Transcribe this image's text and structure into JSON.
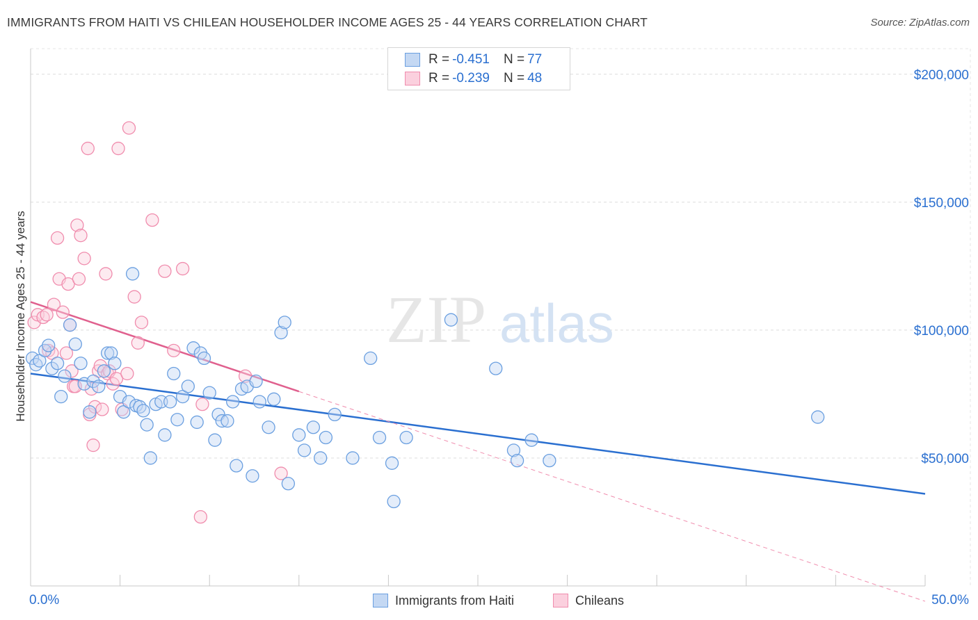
{
  "title": "IMMIGRANTS FROM HAITI VS CHILEAN HOUSEHOLDER INCOME AGES 25 - 44 YEARS CORRELATION CHART",
  "source": "Source: ZipAtlas.com",
  "watermark": {
    "zip": "ZIP",
    "atlas": "atlas"
  },
  "legend": {
    "haiti": {
      "r_label": "R =",
      "r_value": "-0.451",
      "n_label": "N =",
      "n_value": "77"
    },
    "chileans": {
      "r_label": "R =",
      "r_value": "-0.239",
      "n_label": "N =",
      "n_value": "48"
    }
  },
  "colors": {
    "haiti": "#6a9fe0",
    "haiti_line": "#2a6fd0",
    "chileans": "#f08cad",
    "chileans_line": "#e0608e",
    "axis_text": "#2a6fd0",
    "grid": "#d8d8d8"
  },
  "chart_data": {
    "type": "scatter",
    "title": "IMMIGRANTS FROM HAITI VS CHILEAN HOUSEHOLDER INCOME AGES 25 - 44 YEARS CORRELATION CHART",
    "xlabel": "",
    "ylabel": "Householder Income Ages 25 - 44 years",
    "xlim": [
      0,
      50
    ],
    "ylim": [
      0,
      210000
    ],
    "x_tick_labels": [
      "0.0%",
      "50.0%"
    ],
    "y_ticks": [
      50000,
      100000,
      150000,
      200000
    ],
    "y_tick_labels": [
      "$50,000",
      "$100,000",
      "$150,000",
      "$200,000"
    ],
    "grid": true,
    "legend_position": "top-center",
    "series": [
      {
        "name": "Immigrants from Haiti",
        "color": "#6a9fe0",
        "trendline": {
          "x": [
            0,
            50
          ],
          "y": [
            83000,
            36000
          ]
        },
        "points": [
          [
            0.1,
            89000
          ],
          [
            0.3,
            86500
          ],
          [
            0.5,
            88000
          ],
          [
            0.8,
            92000
          ],
          [
            1.0,
            94000
          ],
          [
            1.2,
            85000
          ],
          [
            1.5,
            87000
          ],
          [
            1.7,
            74000
          ],
          [
            1.9,
            82000
          ],
          [
            2.2,
            102000
          ],
          [
            2.5,
            94500
          ],
          [
            2.8,
            87000
          ],
          [
            3.0,
            79000
          ],
          [
            3.3,
            68000
          ],
          [
            3.5,
            80000
          ],
          [
            3.8,
            78000
          ],
          [
            4.1,
            84000
          ],
          [
            4.3,
            91000
          ],
          [
            4.5,
            91000
          ],
          [
            4.7,
            87000
          ],
          [
            5.0,
            74000
          ],
          [
            5.2,
            68000
          ],
          [
            5.5,
            72000
          ],
          [
            5.7,
            122000
          ],
          [
            5.9,
            70500
          ],
          [
            6.1,
            70000
          ],
          [
            6.3,
            68500
          ],
          [
            6.5,
            63000
          ],
          [
            6.7,
            50000
          ],
          [
            7.0,
            71000
          ],
          [
            7.3,
            72000
          ],
          [
            7.5,
            59000
          ],
          [
            7.8,
            72000
          ],
          [
            8.0,
            83000
          ],
          [
            8.2,
            65000
          ],
          [
            8.5,
            74000
          ],
          [
            8.8,
            78000
          ],
          [
            9.1,
            93000
          ],
          [
            9.3,
            64000
          ],
          [
            9.5,
            91000
          ],
          [
            9.7,
            89000
          ],
          [
            10.0,
            75500
          ],
          [
            10.3,
            57000
          ],
          [
            10.5,
            67000
          ],
          [
            10.7,
            64500
          ],
          [
            11.0,
            64500
          ],
          [
            11.3,
            72000
          ],
          [
            11.5,
            47000
          ],
          [
            11.8,
            77000
          ],
          [
            12.1,
            78000
          ],
          [
            12.4,
            43000
          ],
          [
            12.6,
            80000
          ],
          [
            12.8,
            72000
          ],
          [
            13.3,
            62000
          ],
          [
            13.6,
            73000
          ],
          [
            14.0,
            99000
          ],
          [
            14.2,
            103000
          ],
          [
            14.4,
            40000
          ],
          [
            15.0,
            59000
          ],
          [
            15.3,
            53000
          ],
          [
            15.8,
            62000
          ],
          [
            16.2,
            50000
          ],
          [
            16.5,
            58000
          ],
          [
            17.0,
            67000
          ],
          [
            18.0,
            50000
          ],
          [
            19.0,
            89000
          ],
          [
            19.5,
            58000
          ],
          [
            20.2,
            48000
          ],
          [
            20.3,
            33000
          ],
          [
            21.0,
            58000
          ],
          [
            23.5,
            104000
          ],
          [
            26.0,
            85000
          ],
          [
            27.0,
            53000
          ],
          [
            27.2,
            49000
          ],
          [
            28.0,
            57000
          ],
          [
            29.0,
            49000
          ],
          [
            44.0,
            66000
          ]
        ]
      },
      {
        "name": "Chileans",
        "color": "#f08cad",
        "trendline": {
          "x": [
            0,
            15
          ],
          "y": [
            111000,
            76000
          ],
          "dashed_extension": {
            "x": [
              15,
              50
            ],
            "y": [
              76000,
              -6000
            ]
          }
        },
        "points": [
          [
            0.2,
            103000
          ],
          [
            0.4,
            106000
          ],
          [
            0.7,
            105000
          ],
          [
            0.9,
            106000
          ],
          [
            1.0,
            92000
          ],
          [
            1.2,
            91000
          ],
          [
            1.3,
            110000
          ],
          [
            1.5,
            136000
          ],
          [
            1.6,
            120000
          ],
          [
            1.8,
            107000
          ],
          [
            2.0,
            91000
          ],
          [
            2.1,
            118000
          ],
          [
            2.2,
            102000
          ],
          [
            2.3,
            84000
          ],
          [
            2.4,
            78000
          ],
          [
            2.5,
            78000
          ],
          [
            2.6,
            141000
          ],
          [
            2.7,
            120000
          ],
          [
            2.8,
            137000
          ],
          [
            3.0,
            128000
          ],
          [
            3.2,
            171000
          ],
          [
            3.3,
            67000
          ],
          [
            3.4,
            77000
          ],
          [
            3.5,
            55000
          ],
          [
            3.6,
            70000
          ],
          [
            3.8,
            84000
          ],
          [
            3.9,
            86000
          ],
          [
            4.0,
            69000
          ],
          [
            4.2,
            122000
          ],
          [
            4.3,
            83000
          ],
          [
            4.4,
            84000
          ],
          [
            4.6,
            79000
          ],
          [
            4.8,
            81000
          ],
          [
            4.9,
            171000
          ],
          [
            5.1,
            69000
          ],
          [
            5.4,
            83000
          ],
          [
            5.5,
            179000
          ],
          [
            5.8,
            113000
          ],
          [
            6.0,
            95000
          ],
          [
            6.2,
            103000
          ],
          [
            6.8,
            143000
          ],
          [
            7.5,
            123000
          ],
          [
            8.0,
            92000
          ],
          [
            8.5,
            124000
          ],
          [
            9.5,
            27000
          ],
          [
            9.6,
            71000
          ],
          [
            12.0,
            82000
          ],
          [
            14.0,
            44000
          ]
        ]
      }
    ]
  },
  "bottom_legend": {
    "haiti": "Immigrants from Haiti",
    "chileans": "Chileans"
  },
  "axis": {
    "x_min_label": "0.0%",
    "x_max_label": "50.0%"
  }
}
